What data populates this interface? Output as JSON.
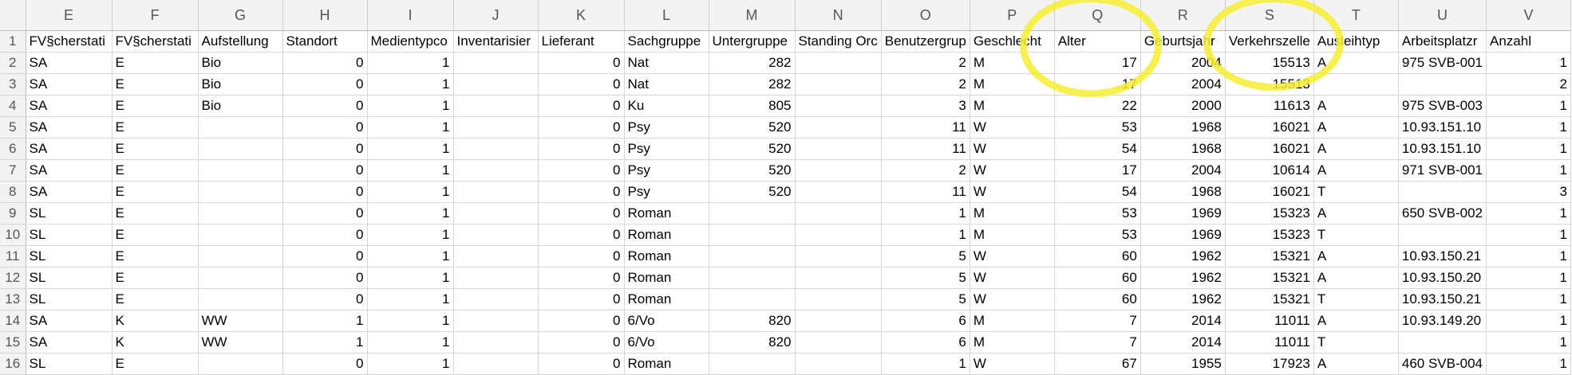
{
  "columns": [
    "E",
    "F",
    "G",
    "H",
    "I",
    "J",
    "K",
    "L",
    "M",
    "N",
    "O",
    "P",
    "Q",
    "R",
    "S",
    "T",
    "U",
    "V"
  ],
  "rows": [
    {
      "n": "1",
      "c": [
        "FV§cherstati",
        "FV§cherstati",
        "Aufstellung",
        "Standort",
        "Medientypco",
        "Inventarisier",
        "Lieferant",
        "Sachgruppe",
        "Untergruppe",
        "Standing Orc",
        "Benutzergrup",
        "Geschlecht",
        "Alter",
        "Geburtsjahr",
        "Verkehrszelle",
        "Ausleihtyp",
        "Arbeitsplatzr",
        "Anzahl"
      ]
    },
    {
      "n": "2",
      "c": [
        "SA",
        "E",
        "Bio",
        "0",
        "1",
        "",
        "0",
        "Nat",
        "282",
        "",
        "2",
        "M",
        "17",
        "2004",
        "15513",
        "A",
        "975 SVB-001",
        "1"
      ]
    },
    {
      "n": "3",
      "c": [
        "SA",
        "E",
        "Bio",
        "0",
        "1",
        "",
        "0",
        "Nat",
        "282",
        "",
        "2",
        "M",
        "17",
        "2004",
        "15513",
        "",
        "",
        "2"
      ]
    },
    {
      "n": "4",
      "c": [
        "SA",
        "E",
        "Bio",
        "0",
        "1",
        "",
        "0",
        "Ku",
        "805",
        "",
        "3",
        "M",
        "22",
        "2000",
        "11613",
        "A",
        "975 SVB-003",
        "1"
      ]
    },
    {
      "n": "5",
      "c": [
        "SA",
        "E",
        "",
        "0",
        "1",
        "",
        "0",
        "Psy",
        "520",
        "",
        "11",
        "W",
        "53",
        "1968",
        "16021",
        "A",
        "10.93.151.10",
        "1"
      ]
    },
    {
      "n": "6",
      "c": [
        "SA",
        "E",
        "",
        "0",
        "1",
        "",
        "0",
        "Psy",
        "520",
        "",
        "11",
        "W",
        "54",
        "1968",
        "16021",
        "A",
        "10.93.151.10",
        "1"
      ]
    },
    {
      "n": "7",
      "c": [
        "SA",
        "E",
        "",
        "0",
        "1",
        "",
        "0",
        "Psy",
        "520",
        "",
        "2",
        "W",
        "17",
        "2004",
        "10614",
        "A",
        "971 SVB-001",
        "1"
      ]
    },
    {
      "n": "8",
      "c": [
        "SA",
        "E",
        "",
        "0",
        "1",
        "",
        "0",
        "Psy",
        "520",
        "",
        "11",
        "W",
        "54",
        "1968",
        "16021",
        "T",
        "",
        "3"
      ]
    },
    {
      "n": "9",
      "c": [
        "SL",
        "E",
        "",
        "0",
        "1",
        "",
        "0",
        "Roman",
        "",
        "",
        "1",
        "M",
        "53",
        "1969",
        "15323",
        "A",
        "650 SVB-002",
        "1"
      ]
    },
    {
      "n": "10",
      "c": [
        "SL",
        "E",
        "",
        "0",
        "1",
        "",
        "0",
        "Roman",
        "",
        "",
        "1",
        "M",
        "53",
        "1969",
        "15323",
        "T",
        "",
        "1"
      ]
    },
    {
      "n": "11",
      "c": [
        "SL",
        "E",
        "",
        "0",
        "1",
        "",
        "0",
        "Roman",
        "",
        "",
        "5",
        "W",
        "60",
        "1962",
        "15321",
        "A",
        "10.93.150.21",
        "1"
      ]
    },
    {
      "n": "12",
      "c": [
        "SL",
        "E",
        "",
        "0",
        "1",
        "",
        "0",
        "Roman",
        "",
        "",
        "5",
        "W",
        "60",
        "1962",
        "15321",
        "A",
        "10.93.150.20",
        "1"
      ]
    },
    {
      "n": "13",
      "c": [
        "SL",
        "E",
        "",
        "0",
        "1",
        "",
        "0",
        "Roman",
        "",
        "",
        "5",
        "W",
        "60",
        "1962",
        "15321",
        "T",
        "10.93.150.21",
        "1"
      ]
    },
    {
      "n": "14",
      "c": [
        "SA",
        "K",
        "WW",
        "1",
        "1",
        "",
        "0",
        "6/Vo",
        "820",
        "",
        "6",
        "M",
        "7",
        "2014",
        "11011",
        "A",
        "10.93.149.20",
        "1"
      ]
    },
    {
      "n": "15",
      "c": [
        "SA",
        "K",
        "WW",
        "1",
        "1",
        "",
        "0",
        "6/Vo",
        "820",
        "",
        "6",
        "M",
        "7",
        "2014",
        "11011",
        "T",
        "",
        "1"
      ]
    },
    {
      "n": "16",
      "c": [
        "SL",
        "E",
        "",
        "0",
        "1",
        "",
        "0",
        "Roman",
        "",
        "",
        "1",
        "W",
        "67",
        "1955",
        "17923",
        "A",
        "460 SVB-004",
        "1"
      ]
    }
  ],
  "highlight_color": "#f5ee32"
}
